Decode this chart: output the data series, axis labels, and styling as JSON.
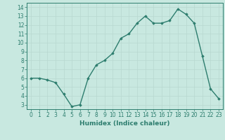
{
  "title": "",
  "xlabel": "Humidex (Indice chaleur)",
  "ylabel": "",
  "x": [
    0,
    1,
    2,
    3,
    4,
    5,
    6,
    7,
    8,
    9,
    10,
    11,
    12,
    13,
    14,
    15,
    16,
    17,
    18,
    19,
    20,
    21,
    22,
    23
  ],
  "y": [
    6.0,
    6.0,
    5.8,
    5.5,
    4.2,
    2.8,
    3.0,
    6.0,
    7.5,
    8.0,
    8.8,
    10.5,
    11.0,
    12.2,
    13.0,
    12.2,
    12.2,
    12.5,
    13.8,
    13.2,
    12.2,
    8.5,
    4.8,
    3.7
  ],
  "line_color": "#2d7d6e",
  "marker": "D",
  "marker_size": 1.8,
  "bg_color": "#c8e8e0",
  "grid_color": "#b8d8d0",
  "ylim": [
    2.5,
    14.5
  ],
  "xlim": [
    -0.5,
    23.5
  ],
  "yticks": [
    3,
    4,
    5,
    6,
    7,
    8,
    9,
    10,
    11,
    12,
    13,
    14
  ],
  "xticks": [
    0,
    1,
    2,
    3,
    4,
    5,
    6,
    7,
    8,
    9,
    10,
    11,
    12,
    13,
    14,
    15,
    16,
    17,
    18,
    19,
    20,
    21,
    22,
    23
  ],
  "tick_label_fontsize": 5.5,
  "xlabel_fontsize": 6.5,
  "line_width": 1.0
}
